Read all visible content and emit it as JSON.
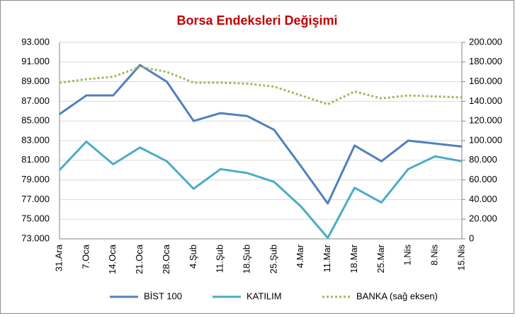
{
  "chart_data": {
    "type": "line",
    "title": "Borsa Endeksleri Değişimi",
    "categories": [
      "31.Ara",
      "7.Oca",
      "14.Oca",
      "21.Oca",
      "28.Oca",
      "4.Şub",
      "11.Şub",
      "18.Şub",
      "25.Şub",
      "4.Mar",
      "11.Mar",
      "18.Mar",
      "25.Mar",
      "1.Nis",
      "8.Nis",
      "15.Nis"
    ],
    "series": [
      {
        "name": "BİST 100",
        "color": "#4f81bd",
        "dash": "solid",
        "values": [
          85700,
          87600,
          87600,
          90700,
          89000,
          85000,
          85800,
          85500,
          84100,
          80400,
          76600,
          82500,
          80900,
          83000,
          82700,
          82400
        ]
      },
      {
        "name": "KATILIM",
        "color": "#4bacc6",
        "dash": "solid",
        "values": [
          80000,
          82900,
          80600,
          82300,
          80900,
          78100,
          80100,
          79700,
          78800,
          76300,
          73100,
          78200,
          76700,
          80100,
          81400,
          80900
        ]
      },
      {
        "name": "BANKA (sağ eksen)",
        "color": "#9bbb59",
        "dash": "dotted",
        "axis": "y2",
        "values": [
          159000,
          162500,
          165000,
          175000,
          170000,
          159000,
          159000,
          158000,
          155000,
          146000,
          137000,
          150000,
          143000,
          146000,
          145000,
          144000
        ]
      }
    ],
    "ylim": [
      73000,
      93000
    ],
    "yticks": [
      {
        "value": 73000,
        "label": "73.000"
      },
      {
        "value": 75000,
        "label": "75.000"
      },
      {
        "value": 77000,
        "label": "77.000"
      },
      {
        "value": 79000,
        "label": "79.000"
      },
      {
        "value": 81000,
        "label": "81.000"
      },
      {
        "value": 83000,
        "label": "83.000"
      },
      {
        "value": 85000,
        "label": "85.000"
      },
      {
        "value": 87000,
        "label": "87.000"
      },
      {
        "value": 89000,
        "label": "89.000"
      },
      {
        "value": 91000,
        "label": "91.000"
      },
      {
        "value": 93000,
        "label": "93.000"
      }
    ],
    "y2lim": [
      0,
      200000
    ],
    "y2ticks": [
      0,
      {
        "value": 20000,
        "label": "20.000"
      },
      {
        "value": 40000,
        "label": "40.000"
      },
      {
        "value": 60000,
        "label": "60.000"
      },
      {
        "value": 80000,
        "label": "80.000"
      },
      {
        "value": 100000,
        "label": "100.000"
      },
      {
        "value": 120000,
        "label": "120.000"
      },
      {
        "value": 140000,
        "label": "140.000"
      },
      {
        "value": 160000,
        "label": "160.000"
      },
      {
        "value": 180000,
        "label": "180.000"
      },
      {
        "value": 200000,
        "label": "200.000"
      }
    ],
    "grid": true,
    "legend": "bottom"
  }
}
